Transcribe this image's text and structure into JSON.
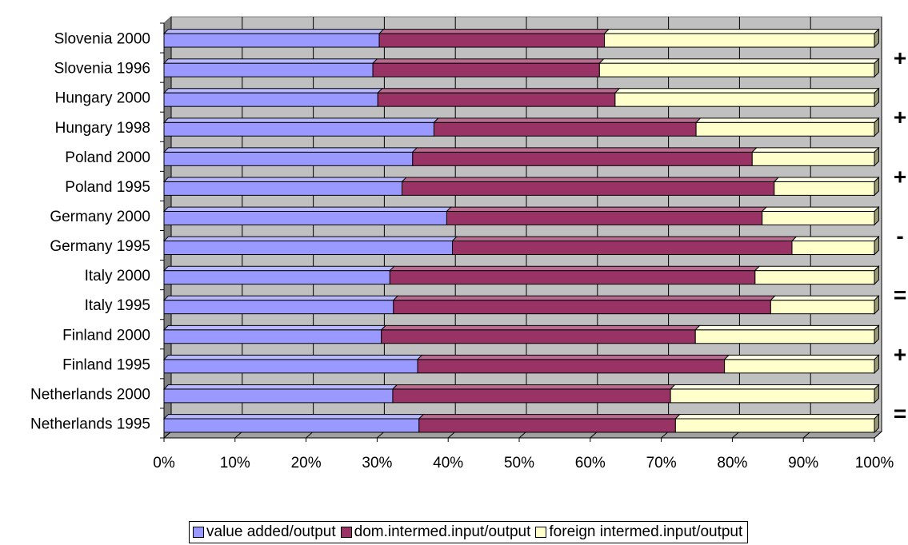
{
  "chart_data": {
    "type": "bar",
    "orientation": "horizontal",
    "stacked": "percent",
    "categories": [
      "Slovenia 2000",
      "Slovenia 1996",
      "Hungary 2000",
      "Hungary 1998",
      "Poland 2000",
      "Poland 1995",
      "Germany 2000",
      "Germany 1995",
      "Italy 2000",
      "Italy 1995",
      "Finland 2000",
      "Finland 1995",
      "Netherlands 2000",
      "Netherlands 1995"
    ],
    "series": [
      {
        "name": "value added/output",
        "color": "#9999ff",
        "values": [
          30.3,
          29.4,
          30.1,
          38.0,
          35.0,
          33.5,
          39.8,
          40.6,
          31.8,
          32.3,
          30.6,
          35.7,
          32.2,
          35.9
        ]
      },
      {
        "name": "dom.intermed.input/output",
        "color": "#993366",
        "values": [
          31.7,
          31.9,
          33.4,
          36.9,
          47.8,
          52.4,
          44.4,
          47.8,
          51.4,
          53.1,
          44.2,
          43.2,
          39.1,
          36.1
        ]
      },
      {
        "name": "foreign intermed.input/output",
        "color": "#ffffcc",
        "values": [
          38.0,
          38.7,
          36.5,
          25.1,
          17.2,
          14.1,
          15.8,
          11.6,
          16.8,
          14.6,
          25.2,
          21.1,
          28.7,
          28.0
        ]
      }
    ],
    "x_ticks": [
      "0%",
      "10%",
      "20%",
      "30%",
      "40%",
      "50%",
      "60%",
      "70%",
      "80%",
      "90%",
      "100%"
    ],
    "xlim": [
      0,
      100
    ],
    "grid": true,
    "legend_position": "bottom",
    "annotations": [
      "+",
      "+",
      "+",
      "-",
      "=",
      "+",
      "="
    ],
    "title": "",
    "xlabel": "",
    "ylabel": ""
  }
}
